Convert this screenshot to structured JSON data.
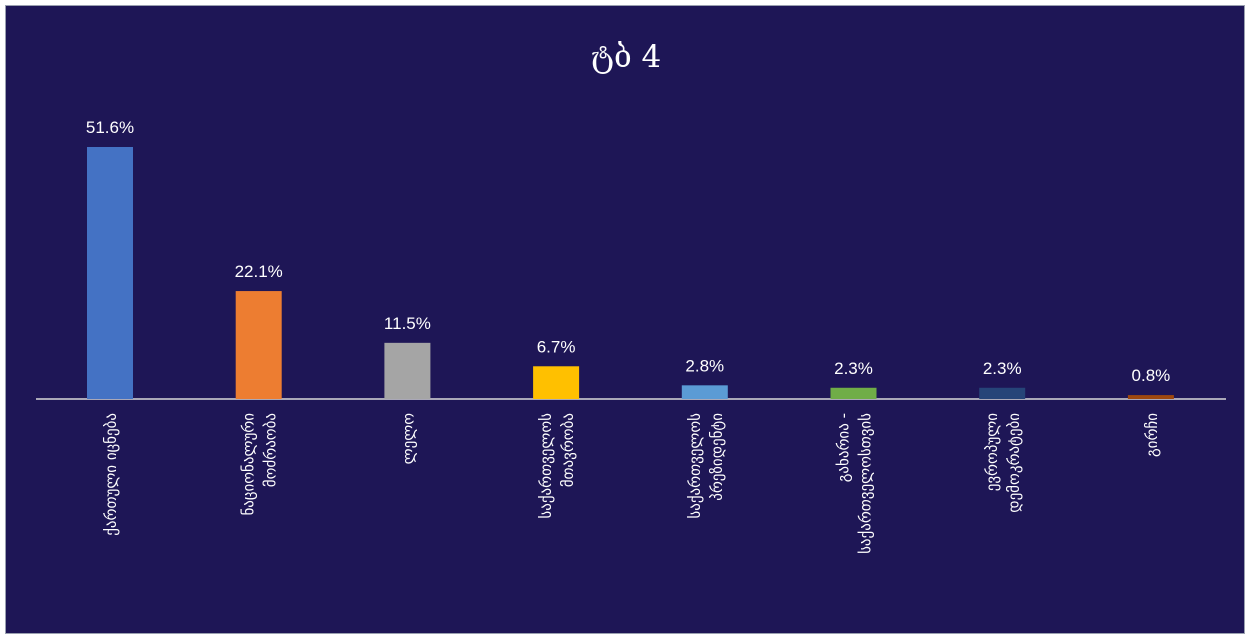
{
  "chart_data": {
    "type": "bar",
    "title": "ტბ 4",
    "xlabel": "",
    "ylabel": "",
    "ylim": [
      0,
      55
    ],
    "grid": false,
    "legend": "none",
    "categories": [
      [
        "ქართული იცნება"
      ],
      [
        "ნაციონალური",
        "მოძრაობა"
      ],
      [
        "ლელო"
      ],
      [
        "საქართველოს",
        "მთავრობა"
      ],
      [
        "საქართველოს",
        "პრეზიდენტი"
      ],
      [
        "გახარია -",
        "საქართველოსთვის"
      ],
      [
        "ევროპული",
        "დემოკრატები"
      ],
      [
        "გირჩი"
      ]
    ],
    "values": [
      51.6,
      22.1,
      11.5,
      6.7,
      2.8,
      2.3,
      2.3,
      0.8
    ],
    "data_labels": [
      "51.6%",
      "22.1%",
      "11.5%",
      "6.7%",
      "2.8%",
      "2.3%",
      "2.3%",
      "0.8%"
    ],
    "colors": [
      "#4472c4",
      "#ed7d31",
      "#a5a5a5",
      "#ffc000",
      "#5b9bd5",
      "#70ad47",
      "#264478",
      "#9e480e"
    ],
    "background": "#1e1656",
    "text_color": "#ffffff",
    "axis_color": "#d9d9d9"
  }
}
